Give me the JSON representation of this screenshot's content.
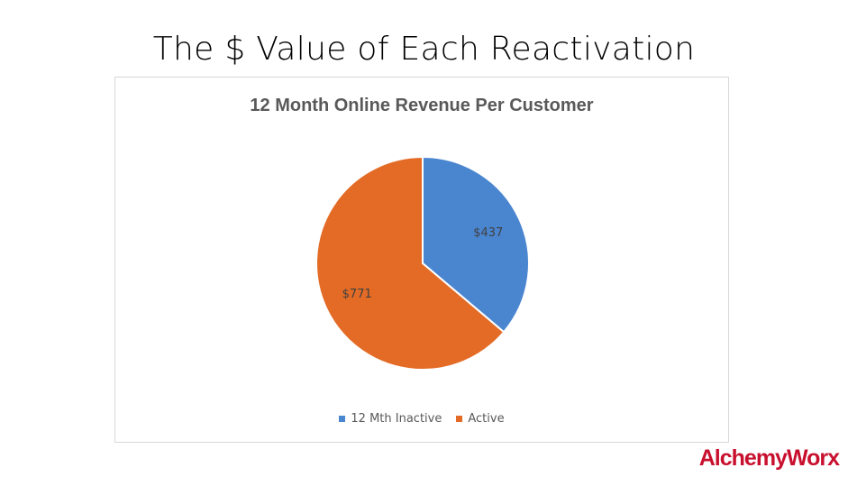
{
  "slide": {
    "title": "The $ Value of Each Reactivation",
    "logo_text": "AlchemyWorx"
  },
  "colors": {
    "inactive": "#4a86d0",
    "active": "#e36b25",
    "logo": "#c8102e"
  },
  "chart_data": {
    "type": "pie",
    "title": "12 Month Online Revenue Per Customer",
    "categories": [
      "12 Mth Inactive",
      "Active"
    ],
    "values": [
      437,
      771
    ],
    "data_labels": [
      "$437",
      "$771"
    ],
    "legend_position": "bottom",
    "start_angle_deg": 0,
    "direction": "clockwise"
  }
}
